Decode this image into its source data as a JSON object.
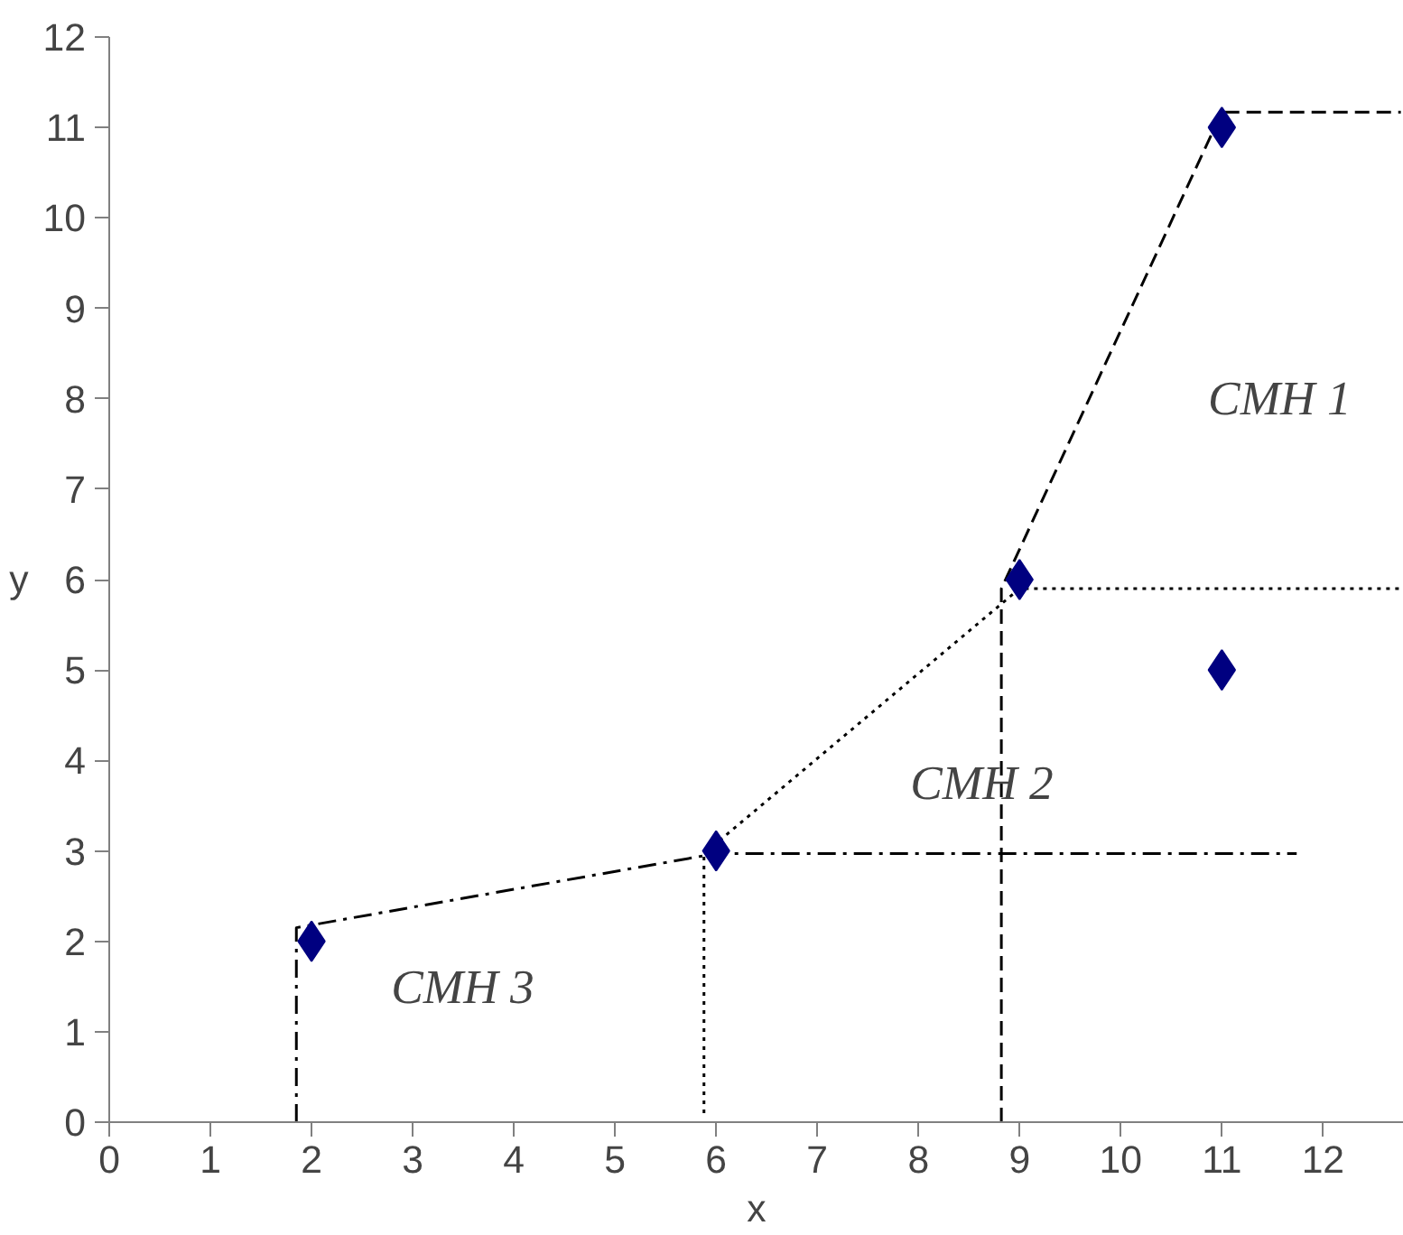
{
  "chart_data": {
    "type": "scatter",
    "xlabel": "x",
    "ylabel": "y",
    "xlim": [
      0,
      12.8
    ],
    "ylim": [
      0,
      12
    ],
    "xticks": [
      0,
      1,
      2,
      3,
      4,
      5,
      6,
      7,
      8,
      9,
      10,
      11,
      12
    ],
    "yticks": [
      0,
      1,
      2,
      3,
      4,
      5,
      6,
      7,
      8,
      9,
      10,
      11,
      12
    ],
    "grid": false,
    "marker": "diamond",
    "series": [
      {
        "type": "line",
        "color": "#000000",
        "line_style": "dashdot",
        "marker": "none",
        "x": [
          1.85,
          1.85,
          6,
          11.74
        ],
        "values": [
          0,
          2.15,
          2.97,
          2.97
        ]
      },
      {
        "type": "line",
        "color": "#000000",
        "line_style": "dotted",
        "marker": "none",
        "x": [
          5.88,
          5.88,
          9,
          12.77
        ],
        "values": [
          0.1,
          2.97,
          5.9,
          5.9
        ]
      },
      {
        "type": "line",
        "color": "#000000",
        "line_style": "dashed",
        "marker": "none",
        "x": [
          8.82,
          8.82,
          11,
          12.77
        ],
        "values": [
          0,
          5.9,
          11.17,
          11.17
        ]
      },
      {
        "color": "#000080",
        "x": [
          2,
          6,
          9,
          11,
          11
        ],
        "values": [
          2,
          3,
          6,
          11,
          5
        ]
      }
    ],
    "annotations": [
      "CMH 1",
      "CMH 2",
      "CMH 3"
    ]
  }
}
